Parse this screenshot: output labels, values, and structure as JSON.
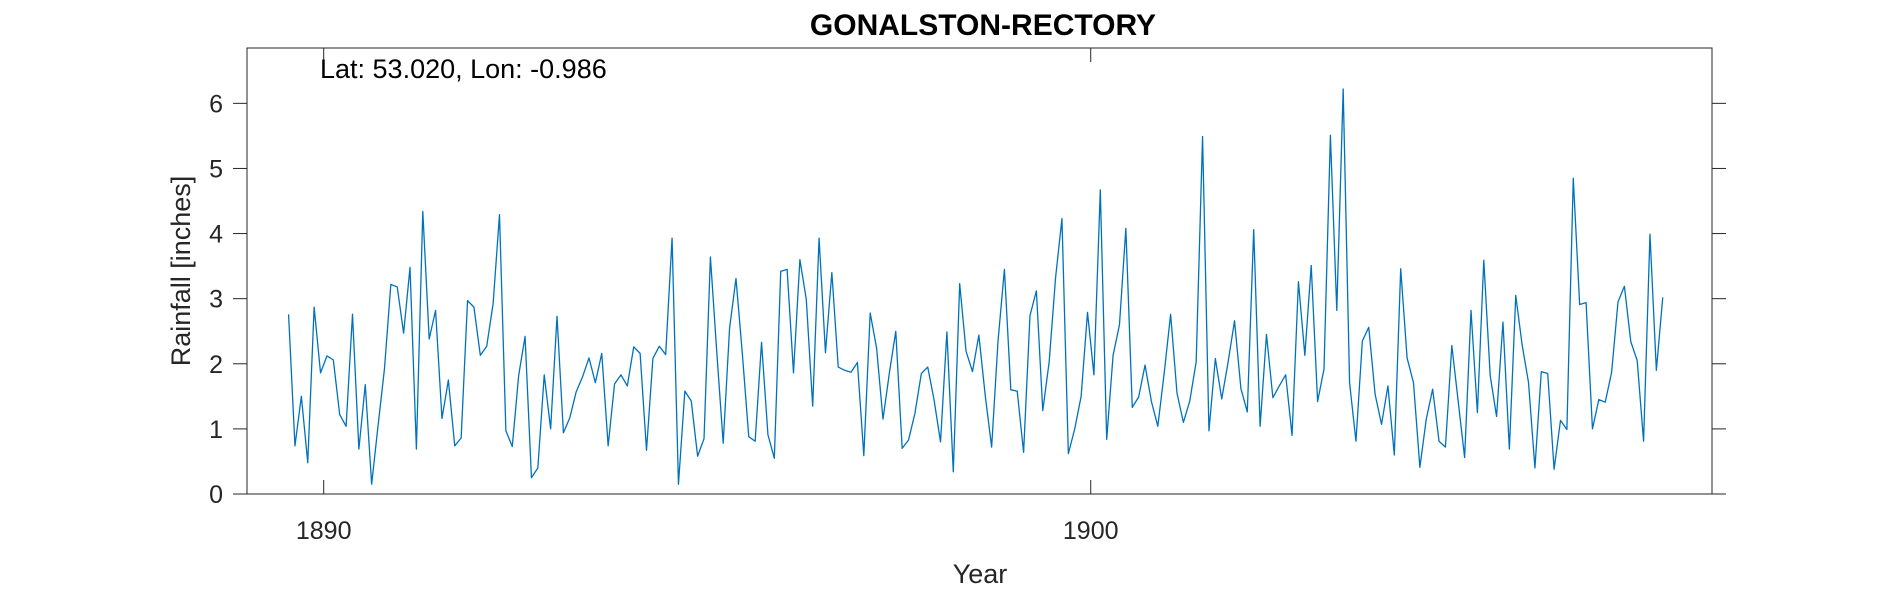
{
  "chart_data": {
    "type": "line",
    "title": "GONALSTON-RECTORY",
    "xlabel": "Year",
    "ylabel": "Rainfall [inches]",
    "annotation": "Lat: 53.020, Lon: -0.986",
    "xlim": [
      1889,
      1908.1
    ],
    "ylim": [
      0,
      6.85
    ],
    "xticks": [
      1890,
      1900
    ],
    "yticks": [
      0,
      1,
      2,
      3,
      4,
      5,
      6
    ],
    "grid": false,
    "legend": "none",
    "series_color": "#0072BD",
    "x_start": 1889.542,
    "x_step": 0.08333,
    "values": [
      2.76,
      0.74,
      1.5,
      0.48,
      2.87,
      1.86,
      2.12,
      2.06,
      1.22,
      1.04,
      2.76,
      0.69,
      1.68,
      0.15,
      1.05,
      1.92,
      3.22,
      3.18,
      2.47,
      3.48,
      0.69,
      4.34,
      2.38,
      2.82,
      1.16,
      1.75,
      0.74,
      0.86,
      2.97,
      2.87,
      2.13,
      2.27,
      2.92,
      4.29,
      0.97,
      0.73,
      1.82,
      2.42,
      0.25,
      0.4,
      1.83,
      1.0,
      2.73,
      0.94,
      1.17,
      1.57,
      1.8,
      2.09,
      1.71,
      2.16,
      0.74,
      1.69,
      1.83,
      1.66,
      2.26,
      2.16,
      0.67,
      2.08,
      2.27,
      2.14,
      3.93,
      0.15,
      1.58,
      1.43,
      0.58,
      0.85,
      3.64,
      2.17,
      0.78,
      2.55,
      3.31,
      2.15,
      0.88,
      0.81,
      2.33,
      0.91,
      0.55,
      3.42,
      3.45,
      1.86,
      3.6,
      2.99,
      1.35,
      3.93,
      2.17,
      3.4,
      1.95,
      1.9,
      1.87,
      2.02,
      0.59,
      2.78,
      2.24,
      1.15,
      1.86,
      2.5,
      0.7,
      0.83,
      1.24,
      1.85,
      1.95,
      1.44,
      0.8,
      2.49,
      0.34,
      3.23,
      2.19,
      1.88,
      2.44,
      1.51,
      0.72,
      2.35,
      3.45,
      1.6,
      1.58,
      0.64,
      2.74,
      3.12,
      1.28,
      2.03,
      3.32,
      4.23,
      0.62,
      1.0,
      1.5,
      2.79,
      1.83,
      4.67,
      0.84,
      2.13,
      2.6,
      4.08,
      1.33,
      1.49,
      1.98,
      1.42,
      1.04,
      1.86,
      2.76,
      1.55,
      1.1,
      1.43,
      2.03,
      5.49,
      0.97,
      2.08,
      1.46,
      2.03,
      2.66,
      1.62,
      1.26,
      4.06,
      1.04,
      2.45,
      1.48,
      1.66,
      1.83,
      0.9,
      3.26,
      2.13,
      3.51,
      1.42,
      1.92,
      5.51,
      2.82,
      6.22,
      1.71,
      0.81,
      2.35,
      2.56,
      1.53,
      1.07,
      1.66,
      0.6,
      3.46,
      2.09,
      1.71,
      0.41,
      1.15,
      1.61,
      0.81,
      0.72,
      2.28,
      1.42,
      0.56,
      2.82,
      1.25,
      3.59,
      1.82,
      1.19,
      2.64,
      0.69,
      3.05,
      2.29,
      1.71,
      0.4,
      1.88,
      1.85,
      0.38,
      1.13,
      0.99,
      4.85,
      2.91,
      2.94,
      1.0,
      1.45,
      1.41,
      1.87,
      2.95,
      3.19,
      2.34,
      2.05,
      0.81,
      3.99,
      1.9,
      3.02
    ]
  }
}
